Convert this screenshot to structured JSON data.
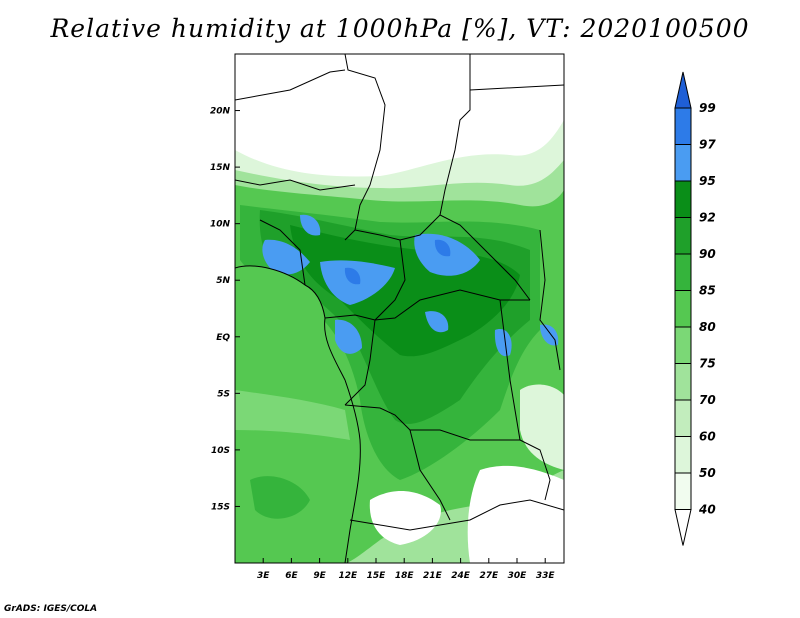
{
  "title": "Relative humidity at 1000hPa [%], VT: 2020100500",
  "credit": "GrADS: IGES/COLA",
  "map": {
    "lon_range": [
      0,
      35
    ],
    "lat_range": [
      -20,
      25
    ],
    "lat_ticks": [
      "20N",
      "15N",
      "10N",
      "5N",
      "EQ",
      "5S",
      "10S",
      "15S"
    ],
    "lon_ticks": [
      "3E",
      "6E",
      "9E",
      "12E",
      "15E",
      "18E",
      "21E",
      "24E",
      "27E",
      "30E",
      "33E"
    ]
  },
  "colorbar": {
    "labels": [
      "99",
      "97",
      "95",
      "92",
      "90",
      "85",
      "80",
      "75",
      "70",
      "60",
      "50",
      "40"
    ],
    "colors": [
      "#1f5fd6",
      "#2d7be8",
      "#4a9cf2",
      "#0a8e18",
      "#1fa02a",
      "#35b43c",
      "#55c851",
      "#7bd876",
      "#a0e39b",
      "#c2edbd",
      "#ddf6da",
      "#f1fcef"
    ]
  }
}
